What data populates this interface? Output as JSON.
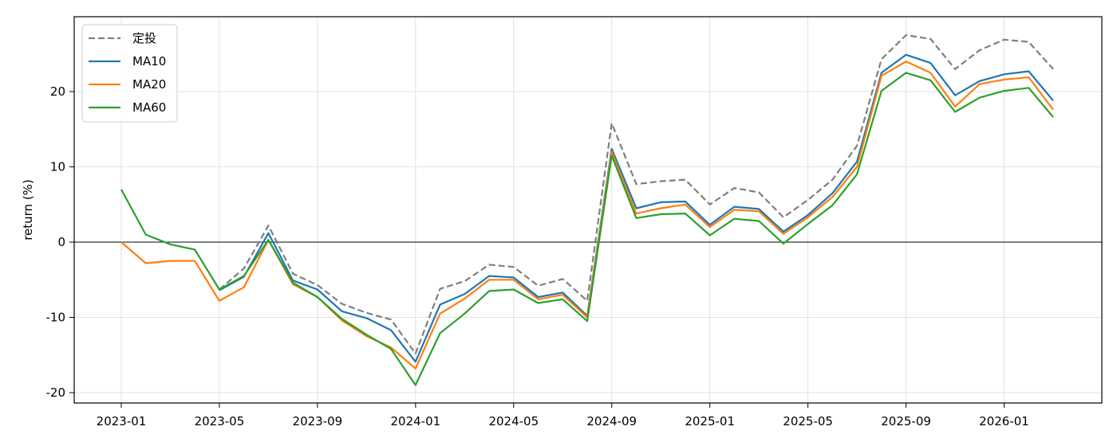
{
  "chart_data": {
    "type": "line",
    "title": "",
    "xlabel": "",
    "ylabel": "return (%)",
    "x": [
      "2023-01",
      "2023-02",
      "2023-03",
      "2023-04",
      "2023-05",
      "2023-06",
      "2023-07",
      "2023-08",
      "2023-09",
      "2023-10",
      "2023-11",
      "2023-12",
      "2024-01",
      "2024-02",
      "2024-03",
      "2024-04",
      "2024-05",
      "2024-06",
      "2024-07",
      "2024-08",
      "2024-09",
      "2024-10",
      "2024-11",
      "2024-12",
      "2025-01",
      "2025-02",
      "2025-03",
      "2025-04",
      "2025-05",
      "2025-06",
      "2025-07",
      "2025-08",
      "2025-09",
      "2025-10",
      "2025-11",
      "2025-12",
      "2026-01",
      "2026-02",
      "2026-03"
    ],
    "x_ticks": [
      "2023-01",
      "2023-05",
      "2023-09",
      "2024-01",
      "2024-05",
      "2024-09",
      "2025-01",
      "2025-05",
      "2025-09",
      "2026-01"
    ],
    "y_ticks": [
      20,
      10,
      0,
      -10,
      -20
    ],
    "y_tick_labels": [
      "20",
      "10",
      "0",
      "-10",
      "-20"
    ],
    "ylim": [
      -21.5,
      30
    ],
    "grid": true,
    "zero_line": true,
    "legend_position": "top-left",
    "series": [
      {
        "name": "定投",
        "color": "#7f7f7f",
        "dashed": true,
        "values": [
          null,
          null,
          null,
          null,
          -6.3,
          -3.5,
          2.2,
          -4.2,
          -5.7,
          -8.2,
          -9.4,
          -10.3,
          -14.8,
          -6.2,
          -5.2,
          -3.0,
          -3.3,
          -5.8,
          -4.9,
          -7.8,
          15.8,
          7.7,
          8.1,
          8.3,
          5.0,
          7.2,
          6.6,
          3.3,
          5.6,
          8.3,
          12.8,
          24.3,
          27.5,
          27.0,
          23.0,
          25.5,
          26.9,
          26.6,
          23.0
        ]
      },
      {
        "name": "MA10",
        "color": "#1f77b4",
        "dashed": false,
        "values": [
          null,
          null,
          null,
          null,
          -6.4,
          -4.6,
          1.2,
          -5.1,
          -6.3,
          -9.2,
          -10.1,
          -11.7,
          -15.9,
          -8.3,
          -6.9,
          -4.5,
          -4.7,
          -7.3,
          -6.7,
          -9.8,
          12.4,
          4.5,
          5.3,
          5.4,
          2.3,
          4.7,
          4.4,
          1.4,
          3.6,
          6.5,
          10.7,
          22.5,
          24.9,
          23.8,
          19.5,
          21.4,
          22.3,
          22.7,
          18.8
        ]
      },
      {
        "name": "MA20",
        "color": "#ff7f0e",
        "dashed": false,
        "values": [
          0.0,
          -2.8,
          -2.5,
          -2.5,
          -7.8,
          -6.0,
          0.3,
          -5.6,
          -7.3,
          -10.4,
          -12.5,
          -14.0,
          -16.8,
          -9.5,
          -7.5,
          -5.0,
          -5.0,
          -7.6,
          -7.0,
          -10.0,
          12.0,
          3.8,
          4.5,
          5.0,
          2.0,
          4.3,
          4.1,
          1.1,
          3.3,
          6.0,
          10.0,
          22.1,
          24.0,
          22.5,
          18.0,
          21.0,
          21.6,
          21.9,
          17.6
        ]
      },
      {
        "name": "MA60",
        "color": "#2ca02c",
        "dashed": false,
        "values": [
          7.0,
          1.0,
          -0.3,
          -1.0,
          -6.3,
          -4.5,
          0.3,
          -5.4,
          -7.3,
          -10.2,
          -12.3,
          -14.2,
          -19.0,
          -12.1,
          -9.5,
          -6.5,
          -6.3,
          -8.1,
          -7.6,
          -10.5,
          11.5,
          3.2,
          3.7,
          3.8,
          0.9,
          3.1,
          2.8,
          -0.2,
          2.4,
          4.9,
          9.0,
          20.1,
          22.5,
          21.5,
          17.3,
          19.2,
          20.1,
          20.5,
          16.6
        ]
      }
    ]
  }
}
